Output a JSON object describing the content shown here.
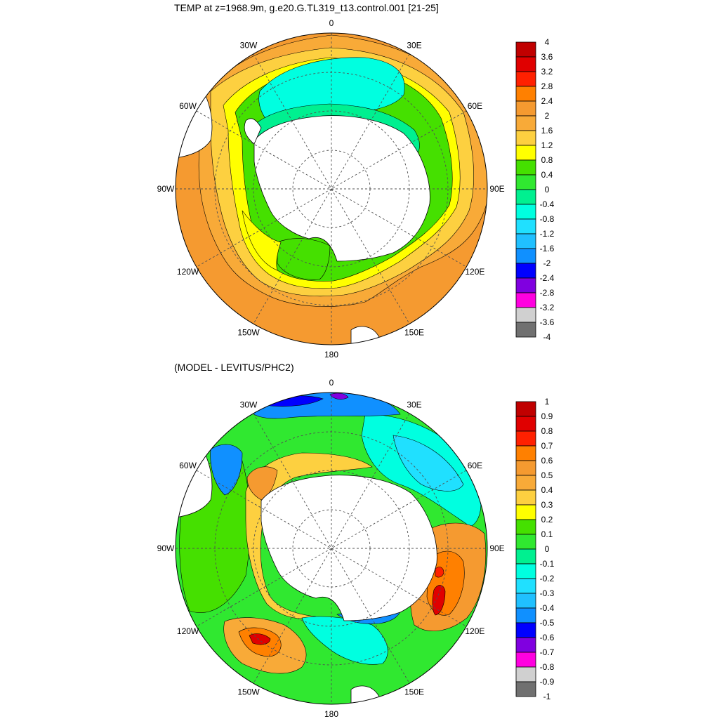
{
  "top_panel": {
    "title": "TEMP at z=1968.9m, g.e20.G.TL319_t13.control.001 [21-25]",
    "lon_labels": [
      "0",
      "30E",
      "60E",
      "90E",
      "120E",
      "150E",
      "180",
      "150W",
      "120W",
      "90W",
      "60W",
      "30W"
    ],
    "colorbar": {
      "labels": [
        "4",
        "3.6",
        "3.2",
        "2.8",
        "2.4",
        "2",
        "1.6",
        "1.2",
        "0.8",
        "0.4",
        "0",
        "-0.4",
        "-0.8",
        "-1.2",
        "-1.6",
        "-2",
        "-2.4",
        "-2.8",
        "-3.2",
        "-3.6",
        "-4"
      ],
      "colors": [
        "#c00000",
        "#e00000",
        "#ff2000",
        "#ff8000",
        "#f59a30",
        "#f8aa38",
        "#fdd040",
        "#ffff00",
        "#45e000",
        "#30e830",
        "#00f090",
        "#00ffe0",
        "#20e0ff",
        "#20c0ff",
        "#1090ff",
        "#0000ff",
        "#8000e0",
        "#ff00e0",
        "#d0d0d0",
        "#707070"
      ]
    }
  },
  "bottom_panel": {
    "title": "(MODEL - LEVITUS/PHC2)",
    "lon_labels": [
      "0",
      "30E",
      "60E",
      "90E",
      "120E",
      "150E",
      "180",
      "150W",
      "120W",
      "90W",
      "60W",
      "30W"
    ],
    "colorbar": {
      "labels": [
        "1",
        "0.9",
        "0.8",
        "0.7",
        "0.6",
        "0.5",
        "0.4",
        "0.3",
        "0.2",
        "0.1",
        "0",
        "-0.1",
        "-0.2",
        "-0.3",
        "-0.4",
        "-0.5",
        "-0.6",
        "-0.7",
        "-0.8",
        "-0.9",
        "-1"
      ],
      "colors": [
        "#c00000",
        "#e00000",
        "#ff2000",
        "#ff8000",
        "#f59a30",
        "#f8aa38",
        "#fdd040",
        "#ffff00",
        "#45e000",
        "#30e830",
        "#00f090",
        "#00ffe0",
        "#20e0ff",
        "#20c0ff",
        "#1090ff",
        "#0000ff",
        "#8000e0",
        "#ff00e0",
        "#d0d0d0",
        "#707070"
      ]
    }
  },
  "colors": {
    "land": "#ffffff",
    "outline": "#000000",
    "grid": "#505050"
  }
}
